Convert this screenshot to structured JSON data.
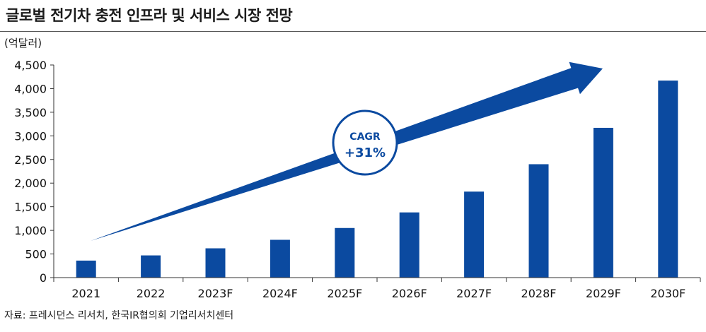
{
  "title": "글로벌 전기차 충전 인프라 및 서비스 시장 전망",
  "unit": "(억달러)",
  "source": "자료: 프레시던스 리서치, 한국IR협의회 기업리서치센터",
  "cagr": {
    "label": "CAGR",
    "value": "+31%"
  },
  "colors": {
    "bar": "#0b4aa0",
    "axis": "#333333",
    "accent": "#0b4aa0"
  },
  "chart_data": {
    "type": "bar",
    "title": "글로벌 전기차 충전 인프라 및 서비스 시장 전망",
    "ylabel": "(억달러)",
    "xlabel": "",
    "categories": [
      "2021",
      "2022",
      "2023F",
      "2024F",
      "2025F",
      "2026F",
      "2027F",
      "2028F",
      "2029F",
      "2030F"
    ],
    "values": [
      360,
      470,
      620,
      800,
      1050,
      1380,
      1820,
      2400,
      3170,
      4170
    ],
    "ylim": [
      0,
      4500
    ],
    "yticks": [
      0,
      500,
      1000,
      1500,
      2000,
      2500,
      3000,
      3500,
      4000,
      4500
    ],
    "ytick_labels": [
      "0",
      "500",
      "1,000",
      "1,500",
      "2,000",
      "2,500",
      "3,000",
      "3,500",
      "4,000",
      "4,500"
    ],
    "grid": false,
    "annotations": [
      "CAGR +31%"
    ]
  }
}
